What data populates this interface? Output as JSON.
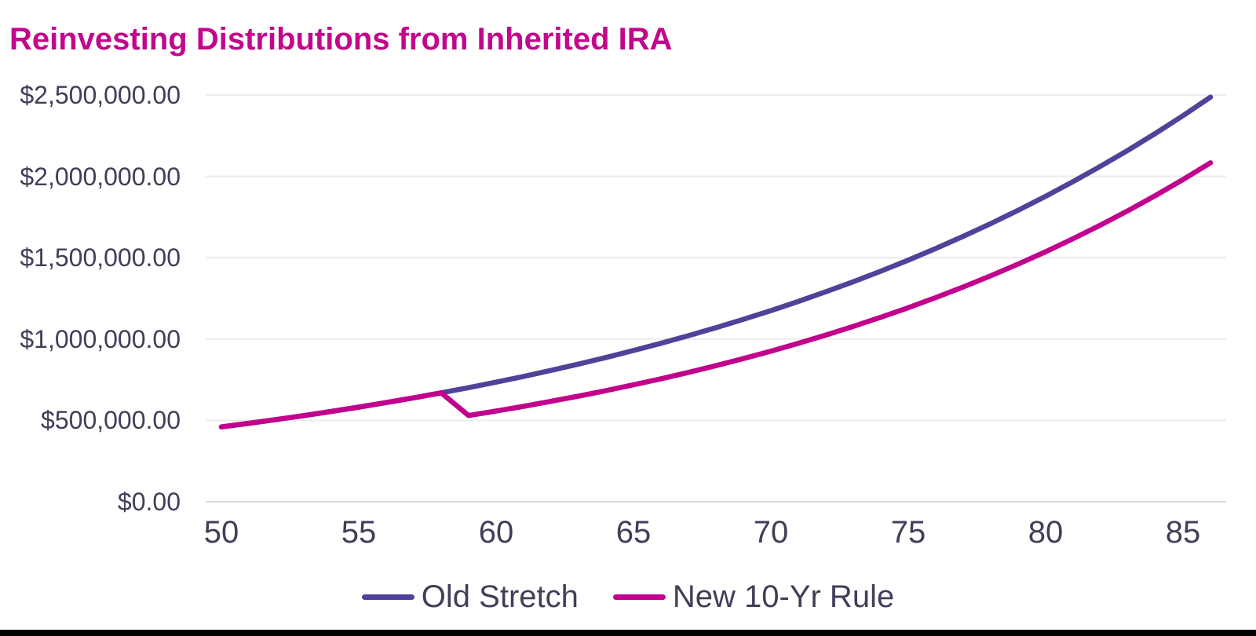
{
  "page": {
    "title": "Reinvesting Distributions from Inherited IRA",
    "title_color": "#c2078d",
    "text_color": "#3f3f58",
    "bottom_bar_color": "#000000"
  },
  "chart_data": {
    "type": "line",
    "title": "Reinvesting Distributions from Inherited IRA",
    "xlabel": "",
    "ylabel": "",
    "grid": "horizontal",
    "legend_position": "bottom-center",
    "x_axis": {
      "range": [
        50,
        86
      ],
      "tick_values": [
        50,
        55,
        60,
        65,
        70,
        75,
        80,
        85
      ],
      "tick_labels": [
        "50",
        "55",
        "60",
        "65",
        "70",
        "75",
        "80",
        "85"
      ]
    },
    "y_axis": {
      "range": [
        0,
        2500000
      ],
      "tick_values": [
        0,
        500000,
        1000000,
        1500000,
        2000000,
        2500000
      ],
      "tick_labels": [
        "$0.00",
        "$500,000.00",
        "$1,000,000.00",
        "$1,500,000.00",
        "$2,000,000.00",
        "$2,500,000.00"
      ]
    },
    "x": [
      50,
      51,
      52,
      53,
      54,
      55,
      56,
      57,
      58,
      59,
      60,
      61,
      62,
      63,
      64,
      65,
      66,
      67,
      68,
      69,
      70,
      71,
      72,
      73,
      74,
      75,
      76,
      77,
      78,
      79,
      80,
      81,
      82,
      83,
      84,
      85,
      86
    ],
    "series": [
      {
        "name": "Old Stretch",
        "color": "#4e4399",
        "values": [
          460000,
          482080,
          505220,
          529470,
          554885,
          581520,
          609432,
          638685,
          669342,
          701470,
          735141,
          770428,
          807408,
          846164,
          886780,
          929345,
          973953,
          1020703,
          1069697,
          1121042,
          1174852,
          1231245,
          1290345,
          1352282,
          1417191,
          1485217,
          1556507,
          1631219,
          1709518,
          1791575,
          1877570,
          1967694,
          2062143,
          2160666,
          2264378,
          2373068,
          2486976
        ]
      },
      {
        "name": "New 10-Yr Rule",
        "color": "#c2008c",
        "values": [
          460000,
          482080,
          505220,
          529470,
          554885,
          581520,
          609432,
          638685,
          669342,
          530000,
          557560,
          586553,
          617054,
          649141,
          682896,
          718407,
          755764,
          795064,
          836407,
          879900,
          925655,
          973789,
          1024426,
          1077696,
          1133736,
          1192690,
          1254710,
          1319955,
          1388593,
          1460800,
          1536761,
          1616673,
          1700740,
          1789179,
          1882216,
          1980091,
          2083056
        ]
      }
    ]
  }
}
